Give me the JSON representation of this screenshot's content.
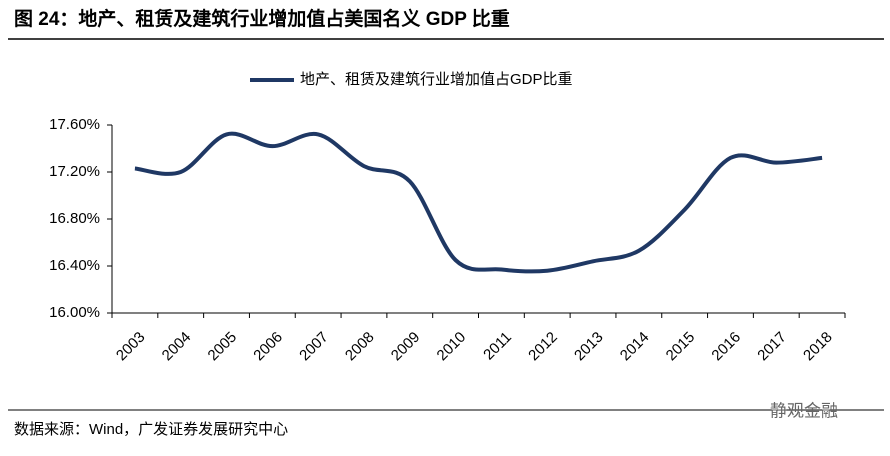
{
  "title": "图 24：地产、租赁及建筑行业增加值占美国名义 GDP 比重",
  "source": "数据来源：Wind，广发证券发展研究中心",
  "watermark": "静观金融",
  "chart_data": {
    "type": "line",
    "categories": [
      "2003",
      "2004",
      "2005",
      "2006",
      "2007",
      "2008",
      "2009",
      "2010",
      "2011",
      "2012",
      "2013",
      "2014",
      "2015",
      "2016",
      "2017",
      "2018"
    ],
    "series": [
      {
        "name": "地产、租赁及建筑行业增加值占GDP比重",
        "color": "#1f3864",
        "values": [
          17.23,
          17.2,
          17.52,
          17.42,
          17.52,
          17.25,
          17.12,
          16.45,
          16.37,
          16.36,
          16.44,
          16.53,
          16.88,
          17.32,
          17.28,
          17.32
        ]
      }
    ],
    "ylim": [
      16,
      17.6
    ],
    "yticks": [
      {
        "value": 16,
        "label": "16.00%"
      },
      {
        "value": 16.4,
        "label": "16.40%"
      },
      {
        "value": 16.8,
        "label": "16.80%"
      },
      {
        "value": 17.2,
        "label": "17.20%"
      },
      {
        "value": 17.6,
        "label": "17.60%"
      }
    ],
    "legend": "top"
  }
}
